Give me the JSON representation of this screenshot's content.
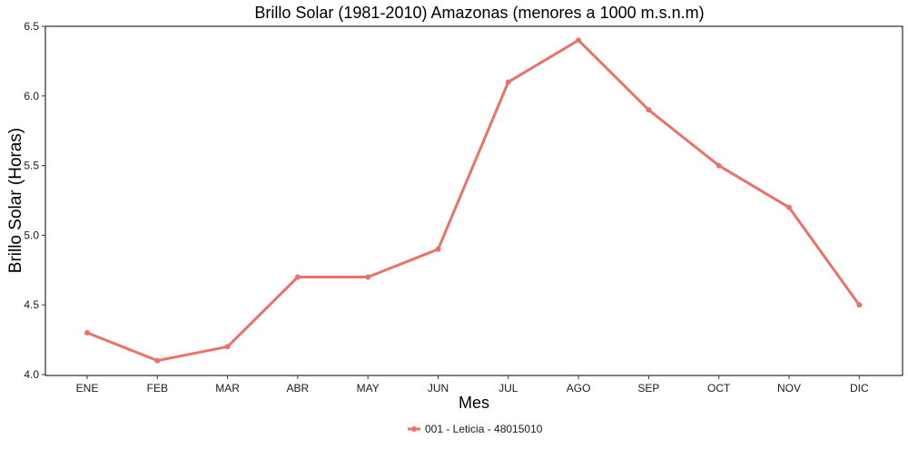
{
  "chart_data": {
    "type": "line",
    "title": "Brillo Solar (1981-2010) Amazonas (menores a 1000 m.s.n.m)",
    "xlabel": "Mes",
    "ylabel": "Brillo Solar (Horas)",
    "categories": [
      "ENE",
      "FEB",
      "MAR",
      "ABR",
      "MAY",
      "JUN",
      "JUL",
      "AGO",
      "SEP",
      "OCT",
      "NOV",
      "DIC"
    ],
    "series": [
      {
        "name": "001 - Leticia - 48015010",
        "values": [
          4.3,
          4.1,
          4.2,
          4.7,
          4.7,
          4.9,
          6.1,
          6.4,
          5.9,
          5.5,
          5.2,
          4.5
        ],
        "color": "#E8736B"
      }
    ],
    "ylim": [
      4.0,
      6.5
    ],
    "yticks": [
      "4.0",
      "4.5",
      "5.0",
      "5.5",
      "6.0",
      "6.5"
    ],
    "grid": false,
    "legend_position": "bottom"
  }
}
